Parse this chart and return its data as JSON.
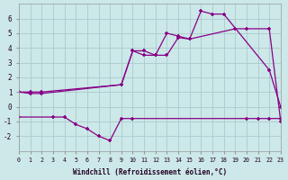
{
  "xlabel": "Windchill (Refroidissement éolien,°C)",
  "background_color": "#cce8e8",
  "grid_color": "#aacccc",
  "line_color": "#880088",
  "ylim": [
    -3,
    7
  ],
  "xlim": [
    0,
    23
  ],
  "line1_x": [
    0,
    1,
    2,
    9,
    10,
    11,
    12,
    13,
    14,
    15,
    16,
    17,
    18,
    22,
    23
  ],
  "line1_y": [
    1.0,
    0.9,
    0.9,
    1.5,
    3.8,
    3.8,
    3.5,
    5.0,
    4.8,
    4.6,
    6.5,
    6.3,
    6.3,
    2.5,
    0.0
  ],
  "line2_x": [
    0,
    1,
    2,
    9,
    10,
    11,
    12,
    13,
    14,
    15,
    19,
    20,
    22,
    23
  ],
  "line2_y": [
    1.0,
    1.0,
    1.0,
    1.5,
    3.8,
    3.5,
    3.5,
    3.5,
    4.7,
    4.6,
    5.3,
    5.3,
    5.3,
    -1.0
  ],
  "line3_x": [
    0,
    3,
    4,
    5,
    6,
    7,
    8,
    9,
    10,
    20,
    21,
    22,
    23
  ],
  "line3_y": [
    -0.7,
    -0.7,
    -0.7,
    -1.2,
    -1.5,
    -2.0,
    -2.3,
    -0.8,
    -0.8,
    -0.8,
    -0.8,
    -0.8,
    -0.8
  ]
}
